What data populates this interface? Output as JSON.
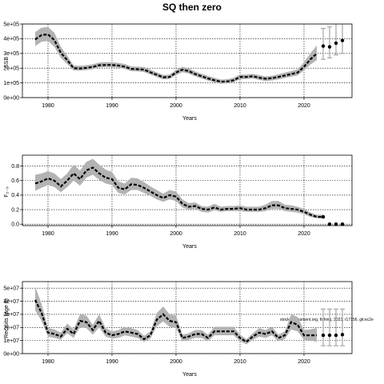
{
  "figure": {
    "title": "SQ then zero",
    "credit": "stockassessment.org, fishing, 2023, r17156, git:ec2e"
  },
  "chart_data": [
    {
      "type": "line",
      "id": "ssb",
      "xlabel": "Years",
      "ylabel": "SSB",
      "xlim": [
        1976,
        2027.5
      ],
      "ylim": [
        0,
        500000
      ],
      "xticks": [
        1980,
        1990,
        2000,
        2010,
        2020
      ],
      "yticks": [
        0,
        100000,
        200000,
        300000,
        400000,
        500000
      ],
      "ytick_labels": [
        "0e+00",
        "1e+05",
        "2e+05",
        "3e+05",
        "4e+05",
        "5e+05"
      ],
      "grid": true,
      "years": [
        1978,
        1979,
        1980,
        1981,
        1982,
        1983,
        1984,
        1985,
        1986,
        1987,
        1988,
        1989,
        1990,
        1991,
        1992,
        1993,
        1994,
        1995,
        1996,
        1997,
        1998,
        1999,
        2000,
        2001,
        2002,
        2003,
        2004,
        2005,
        2006,
        2007,
        2008,
        2009,
        2010,
        2011,
        2012,
        2013,
        2014,
        2015,
        2016,
        2017,
        2018,
        2019,
        2020,
        2021,
        2022
      ],
      "estimate": [
        395000,
        425000,
        430000,
        390000,
        305000,
        255000,
        200000,
        198000,
        202000,
        208000,
        220000,
        222000,
        222000,
        218000,
        210000,
        195000,
        193000,
        190000,
        172000,
        155000,
        138000,
        140000,
        170000,
        190000,
        180000,
        160000,
        145000,
        130000,
        118000,
        108000,
        110000,
        118000,
        140000,
        140000,
        145000,
        135000,
        128000,
        132000,
        140000,
        150000,
        160000,
        170000,
        210000,
        260000,
        300000
      ],
      "lower": [
        350000,
        380000,
        385000,
        345000,
        270000,
        228000,
        185000,
        183000,
        187000,
        193000,
        205000,
        207000,
        206000,
        202000,
        194000,
        180000,
        178000,
        174000,
        157000,
        140000,
        124000,
        126000,
        154000,
        173000,
        163000,
        144000,
        130000,
        115000,
        103000,
        94000,
        96000,
        104000,
        125000,
        126000,
        130000,
        120000,
        113000,
        117000,
        124000,
        133000,
        142000,
        151000,
        185000,
        225000,
        255000
      ],
      "upper": [
        445000,
        475000,
        480000,
        440000,
        345000,
        285000,
        218000,
        216000,
        220000,
        226000,
        238000,
        240000,
        240000,
        236000,
        228000,
        212000,
        210000,
        208000,
        190000,
        172000,
        154000,
        156000,
        188000,
        209000,
        199000,
        178000,
        162000,
        147000,
        134000,
        123000,
        125000,
        134000,
        157000,
        156000,
        162000,
        152000,
        144000,
        148000,
        158000,
        170000,
        180000,
        192000,
        240000,
        300000,
        355000
      ],
      "proj_years": [
        2023,
        2024,
        2025,
        2026
      ],
      "proj_median": [
        350000,
        345000,
        370000,
        388000
      ],
      "proj_low": [
        260000,
        270000,
        290000,
        300000
      ],
      "proj_high": [
        470000,
        480000,
        520000,
        540000
      ]
    },
    {
      "type": "line",
      "id": "f",
      "xlabel": "Years",
      "ylabel": "F₂₋₅",
      "xlim": [
        1976,
        2027.5
      ],
      "ylim": [
        -0.02,
        0.95
      ],
      "xticks": [
        1980,
        1990,
        2000,
        2010,
        2020
      ],
      "yticks": [
        0,
        0.2,
        0.4,
        0.6,
        0.8
      ],
      "ytick_labels": [
        "0.0",
        "0.2",
        "0.4",
        "0.6",
        "0.8"
      ],
      "grid": true,
      "years": [
        1978,
        1979,
        1980,
        1981,
        1982,
        1983,
        1984,
        1985,
        1986,
        1987,
        1988,
        1989,
        1990,
        1991,
        1992,
        1993,
        1994,
        1995,
        1996,
        1997,
        1998,
        1999,
        2000,
        2001,
        2002,
        2003,
        2004,
        2005,
        2006,
        2007,
        2008,
        2009,
        2010,
        2011,
        2012,
        2013,
        2014,
        2015,
        2016,
        2017,
        2018,
        2019,
        2020,
        2021,
        2022,
        2023
      ],
      "estimate": [
        0.56,
        0.59,
        0.63,
        0.6,
        0.52,
        0.6,
        0.7,
        0.62,
        0.74,
        0.78,
        0.7,
        0.64,
        0.62,
        0.5,
        0.48,
        0.55,
        0.54,
        0.5,
        0.45,
        0.4,
        0.36,
        0.4,
        0.38,
        0.28,
        0.24,
        0.25,
        0.21,
        0.2,
        0.23,
        0.2,
        0.21,
        0.21,
        0.22,
        0.2,
        0.2,
        0.2,
        0.22,
        0.26,
        0.26,
        0.22,
        0.21,
        0.2,
        0.17,
        0.13,
        0.1,
        0.1
      ],
      "lower": [
        0.46,
        0.5,
        0.54,
        0.51,
        0.44,
        0.51,
        0.6,
        0.53,
        0.64,
        0.68,
        0.61,
        0.56,
        0.54,
        0.43,
        0.41,
        0.47,
        0.47,
        0.43,
        0.39,
        0.34,
        0.31,
        0.34,
        0.32,
        0.23,
        0.2,
        0.21,
        0.17,
        0.16,
        0.19,
        0.17,
        0.18,
        0.18,
        0.18,
        0.17,
        0.17,
        0.17,
        0.18,
        0.21,
        0.21,
        0.18,
        0.17,
        0.16,
        0.14,
        0.1,
        0.08,
        0.08
      ],
      "upper": [
        0.68,
        0.7,
        0.73,
        0.7,
        0.62,
        0.7,
        0.82,
        0.74,
        0.86,
        0.9,
        0.82,
        0.75,
        0.72,
        0.59,
        0.56,
        0.64,
        0.63,
        0.58,
        0.52,
        0.47,
        0.42,
        0.47,
        0.45,
        0.34,
        0.29,
        0.3,
        0.25,
        0.24,
        0.28,
        0.24,
        0.25,
        0.25,
        0.26,
        0.24,
        0.24,
        0.24,
        0.27,
        0.32,
        0.32,
        0.27,
        0.26,
        0.24,
        0.21,
        0.16,
        0.13,
        0.13
      ],
      "proj_years": [
        2023,
        2024,
        2025,
        2026
      ],
      "proj_median": [
        0.1,
        0.0,
        0.0,
        0.0
      ]
    },
    {
      "type": "line",
      "id": "rec",
      "xlabel": "Years",
      "ylabel": "Recruits (age 0)",
      "xlim": [
        1976,
        2027.5
      ],
      "ylim": [
        0,
        55000000
      ],
      "xticks": [
        1980,
        1990,
        2000,
        2010,
        2020
      ],
      "yticks": [
        0,
        10000000,
        20000000,
        30000000,
        40000000,
        50000000
      ],
      "ytick_labels": [
        "0e+00",
        "1e+07",
        "2e+07",
        "3e+07",
        "4e+07",
        "5e+07"
      ],
      "grid": true,
      "years": [
        1978,
        1979,
        1980,
        1981,
        1982,
        1983,
        1984,
        1985,
        1986,
        1987,
        1988,
        1989,
        1990,
        1991,
        1992,
        1993,
        1994,
        1995,
        1996,
        1997,
        1998,
        1999,
        2000,
        2001,
        2002,
        2003,
        2004,
        2005,
        2006,
        2007,
        2008,
        2009,
        2010,
        2011,
        2012,
        2013,
        2014,
        2015,
        2016,
        2017,
        2018,
        2019,
        2020,
        2021,
        2022
      ],
      "estimate": [
        41000000,
        31000000,
        16000000,
        15000000,
        13000000,
        19000000,
        15000000,
        25000000,
        24000000,
        18000000,
        25000000,
        16000000,
        14000000,
        15000000,
        17000000,
        16000000,
        15000000,
        11000000,
        14000000,
        26000000,
        30000000,
        25000000,
        24000000,
        12000000,
        13000000,
        15000000,
        15000000,
        12000000,
        17000000,
        17000000,
        17000000,
        17000000,
        12000000,
        9000000,
        13000000,
        16000000,
        15000000,
        17000000,
        12000000,
        14000000,
        24000000,
        22000000,
        14000000,
        14000000,
        14000000
      ],
      "lower": [
        33000000,
        25000000,
        13000000,
        12000000,
        10500000,
        15500000,
        12000000,
        20000000,
        19500000,
        14500000,
        20000000,
        13000000,
        11500000,
        12000000,
        14000000,
        13000000,
        12000000,
        9000000,
        11500000,
        21000000,
        24500000,
        20500000,
        19500000,
        9500000,
        10500000,
        12000000,
        12000000,
        9500000,
        14000000,
        14000000,
        14000000,
        14000000,
        9500000,
        7000000,
        10500000,
        13000000,
        12000000,
        14000000,
        9500000,
        11000000,
        18500000,
        17000000,
        10500000,
        10000000,
        9000000
      ],
      "upper": [
        51000000,
        38000000,
        19500000,
        18500000,
        16000000,
        23000000,
        18500000,
        30000000,
        29000000,
        22000000,
        30000000,
        19500000,
        17000000,
        18000000,
        20500000,
        19500000,
        18000000,
        13500000,
        17000000,
        31000000,
        36000000,
        30000000,
        29000000,
        14500000,
        15500000,
        18000000,
        18000000,
        14500000,
        20500000,
        20500000,
        20500000,
        20500000,
        14500000,
        11000000,
        15500000,
        19500000,
        18000000,
        20500000,
        14500000,
        17000000,
        30000000,
        28000000,
        18000000,
        18500000,
        19500000
      ],
      "proj_years": [
        2023,
        2024,
        2025,
        2026
      ],
      "proj_median": [
        14000000,
        14000000,
        14000000,
        14500000
      ],
      "proj_low": [
        6000000,
        6000000,
        6000000,
        6000000
      ],
      "proj_high": [
        34000000,
        34000000,
        34000000,
        34000000
      ]
    }
  ]
}
